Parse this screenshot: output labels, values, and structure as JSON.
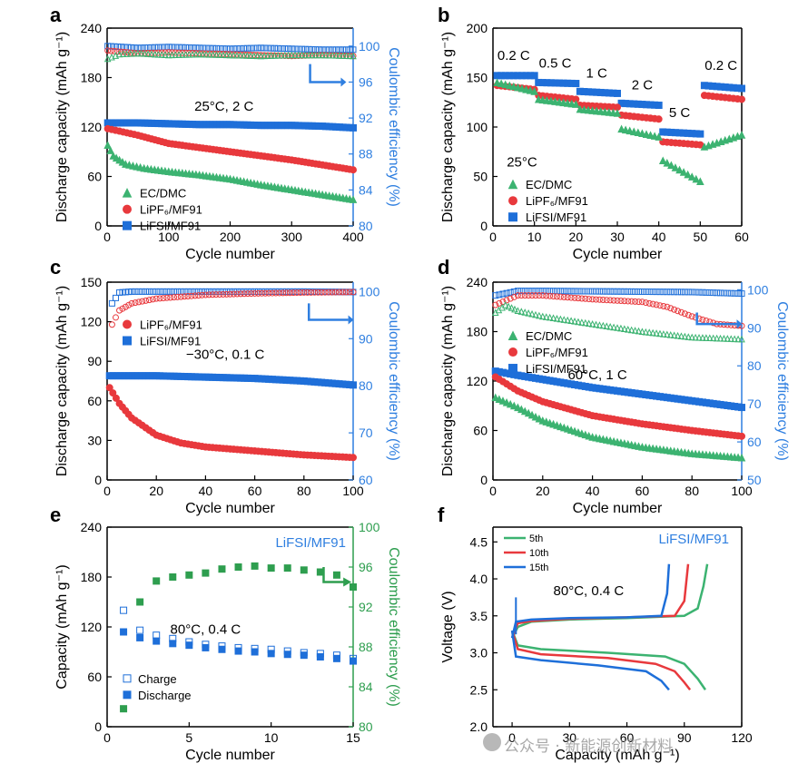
{
  "figure": {
    "watermark": "公众号 · 新能源创新材料",
    "colors": {
      "green": "#3cb371",
      "red": "#e8393d",
      "blue": "#1e6fd9",
      "ce_blue": "#2f7fe0",
      "ce_green": "#2e9e4f",
      "axis": "#000000"
    }
  },
  "chart_data": [
    {
      "panel": "a",
      "type": "scatter",
      "title": "25°C, 2 C",
      "xlabel": "Cycle number",
      "ylabel": "Discharge capacity (mAh g⁻¹)",
      "ylabel_right": "Coulombic efficiency (%)",
      "xlim": [
        0,
        400
      ],
      "ylim": [
        0,
        240
      ],
      "ylim_right": [
        80,
        102
      ],
      "xticks": [
        0,
        100,
        200,
        300,
        400
      ],
      "yticks": [
        0,
        60,
        120,
        180,
        240
      ],
      "yticks_right": [
        80,
        84,
        88,
        92,
        96,
        100
      ],
      "legend": [
        "EC/DMC",
        "LiPF6/MF91",
        "LiFSI/MF91"
      ],
      "series": [
        {
          "name": "LiFSI/MF91",
          "axis": "left",
          "x": [
            1,
            20,
            50,
            100,
            150,
            200,
            250,
            300,
            350,
            400
          ],
          "y": [
            125,
            125,
            125,
            124,
            123,
            123,
            122,
            122,
            121,
            119
          ]
        },
        {
          "name": "LiPF6/MF91",
          "axis": "left",
          "x": [
            1,
            20,
            50,
            100,
            150,
            200,
            250,
            300,
            350,
            400
          ],
          "y": [
            118,
            115,
            110,
            100,
            95,
            90,
            85,
            80,
            74,
            68
          ]
        },
        {
          "name": "EC/DMC",
          "axis": "left",
          "x": [
            1,
            10,
            30,
            60,
            100,
            150,
            200,
            250,
            300,
            350,
            400
          ],
          "y": [
            98,
            85,
            75,
            70,
            66,
            62,
            57,
            50,
            44,
            38,
            32
          ]
        },
        {
          "name": "LiFSI/MF91 CE",
          "axis": "right",
          "x": [
            1,
            50,
            100,
            150,
            200,
            250,
            300,
            350,
            400
          ],
          "y": [
            100,
            99.8,
            99.9,
            99.8,
            99.7,
            99.8,
            99.7,
            99.6,
            99.6
          ]
        },
        {
          "name": "LiPF6/MF91 CE",
          "axis": "right",
          "x": [
            1,
            50,
            100,
            150,
            200,
            250,
            300,
            350,
            400
          ],
          "y": [
            99.5,
            99.2,
            99.3,
            99.2,
            99.1,
            99,
            98.9,
            99,
            98.9
          ]
        },
        {
          "name": "EC/DMC CE",
          "axis": "right",
          "x": [
            1,
            20,
            50,
            100,
            150,
            200,
            250,
            300,
            350,
            400
          ],
          "y": [
            98.6,
            99.1,
            99.2,
            99,
            99.1,
            99,
            98.9,
            99,
            99,
            98.9
          ]
        }
      ]
    },
    {
      "panel": "b",
      "type": "scatter",
      "title": "25°C",
      "xlabel": "Cycle number",
      "ylabel": "Discharge capacity (mAh g⁻¹)",
      "xlim": [
        0,
        60
      ],
      "ylim": [
        0,
        200
      ],
      "xticks": [
        0,
        10,
        20,
        30,
        40,
        50,
        60
      ],
      "yticks": [
        0,
        50,
        100,
        150,
        200
      ],
      "rate_labels": [
        "0.2 C",
        "0.5 C",
        "1 C",
        "2 C",
        "5 C",
        "0.2 C"
      ],
      "legend": [
        "EC/DMC",
        "LiPF6/MF91",
        "LiFSI/MF91"
      ],
      "series": [
        {
          "name": "LiFSI/MF91",
          "x": [
            1,
            10,
            11,
            20,
            21,
            30,
            31,
            40,
            41,
            50,
            51,
            60
          ],
          "y": [
            152,
            152,
            145,
            144,
            136,
            134,
            124,
            122,
            95,
            93,
            142,
            139
          ]
        },
        {
          "name": "LiPF6/MF91",
          "x": [
            1,
            10,
            11,
            20,
            21,
            30,
            31,
            40,
            41,
            50,
            51,
            60
          ],
          "y": [
            142,
            138,
            132,
            128,
            122,
            120,
            112,
            108,
            85,
            82,
            132,
            128
          ]
        },
        {
          "name": "EC/DMC",
          "x": [
            1,
            10,
            11,
            20,
            21,
            30,
            31,
            40,
            41,
            50,
            51,
            60
          ],
          "y": [
            145,
            136,
            128,
            123,
            118,
            114,
            98,
            90,
            66,
            45,
            80,
            92
          ]
        }
      ]
    },
    {
      "panel": "c",
      "type": "scatter",
      "title": "−30°C, 0.1 C",
      "xlabel": "Cycle number",
      "ylabel": "Discharge capacity (mAh g⁻¹)",
      "ylabel_right": "Coulombic efficiency (%)",
      "xlim": [
        0,
        100
      ],
      "ylim": [
        0,
        150
      ],
      "ylim_right": [
        60,
        102
      ],
      "xticks": [
        0,
        20,
        40,
        60,
        80,
        100
      ],
      "yticks": [
        0,
        30,
        60,
        90,
        120,
        150
      ],
      "yticks_right": [
        60,
        70,
        80,
        90,
        100
      ],
      "legend": [
        "LiPF6/MF91",
        "LiFSI/MF91"
      ],
      "series": [
        {
          "name": "LiFSI/MF91",
          "axis": "left",
          "x": [
            1,
            10,
            20,
            40,
            60,
            80,
            100
          ],
          "y": [
            79,
            79,
            79,
            78,
            77,
            75,
            72
          ]
        },
        {
          "name": "LiPF6/MF91",
          "axis": "left",
          "x": [
            1,
            5,
            10,
            20,
            30,
            40,
            60,
            80,
            100
          ],
          "y": [
            70,
            58,
            47,
            34,
            28,
            25,
            22,
            19,
            17
          ]
        },
        {
          "name": "LiFSI/MF91 CE",
          "axis": "right",
          "x": [
            2,
            5,
            10,
            20,
            40,
            60,
            80,
            100
          ],
          "y": [
            97.5,
            99.8,
            100,
            100,
            100,
            100,
            100,
            99.9
          ]
        },
        {
          "name": "LiPF6/MF91 CE",
          "axis": "right",
          "x": [
            2,
            5,
            10,
            20,
            40,
            60,
            80,
            100
          ],
          "y": [
            93,
            96,
            97.5,
            98.5,
            99.3,
            99.6,
            99.8,
            99.9
          ]
        }
      ]
    },
    {
      "panel": "d",
      "type": "scatter",
      "title": "60°C, 1 C",
      "xlabel": "Cycle number",
      "ylabel": "Discharge capacity (mAh g⁻¹)",
      "ylabel_right": "Coulombic efficiency (%)",
      "xlim": [
        0,
        100
      ],
      "ylim": [
        0,
        240
      ],
      "ylim_right": [
        50,
        102
      ],
      "xticks": [
        0,
        20,
        40,
        60,
        80,
        100
      ],
      "yticks": [
        0,
        60,
        120,
        180,
        240
      ],
      "yticks_right": [
        50,
        60,
        70,
        80,
        90,
        100
      ],
      "legend": [
        "EC/DMC",
        "LiPF6/MF91",
        "LiFSI/MF91"
      ],
      "series": [
        {
          "name": "LiFSI/MF91",
          "axis": "left",
          "x": [
            1,
            10,
            20,
            40,
            60,
            80,
            100
          ],
          "y": [
            132,
            127,
            122,
            112,
            104,
            96,
            88
          ]
        },
        {
          "name": "LiPF6/MF91",
          "axis": "left",
          "x": [
            1,
            10,
            20,
            40,
            60,
            80,
            100
          ],
          "y": [
            125,
            108,
            95,
            78,
            68,
            60,
            53
          ]
        },
        {
          "name": "EC/DMC",
          "axis": "left",
          "x": [
            1,
            10,
            20,
            40,
            60,
            80,
            100
          ],
          "y": [
            100,
            88,
            72,
            52,
            40,
            32,
            27
          ]
        },
        {
          "name": "LiFSI/MF91 CE",
          "axis": "right",
          "x": [
            1,
            10,
            20,
            40,
            60,
            80,
            100
          ],
          "y": [
            98.5,
            99.7,
            99.7,
            99.6,
            99.5,
            99.4,
            99
          ]
        },
        {
          "name": "LiPF6/MF91 CE",
          "axis": "right",
          "x": [
            1,
            10,
            20,
            40,
            60,
            70,
            80,
            90,
            100
          ],
          "y": [
            96,
            98.5,
            98.5,
            97.5,
            96.8,
            95.5,
            93,
            91,
            90.5
          ]
        },
        {
          "name": "EC/DMC CE",
          "axis": "right",
          "x": [
            1,
            5,
            10,
            20,
            40,
            60,
            80,
            100
          ],
          "y": [
            94,
            96,
            94.5,
            93,
            91,
            89,
            87.5,
            87
          ]
        }
      ]
    },
    {
      "panel": "e",
      "type": "scatter",
      "title": "80°C, 0.4 C",
      "series_label": "LiFSI/MF91",
      "xlabel": "Cycle number",
      "ylabel": "Capacity (mAh g⁻¹)",
      "ylabel_right": "Coulombic efficiency (%)",
      "xlim": [
        0,
        15
      ],
      "ylim": [
        0,
        240
      ],
      "ylim_right": [
        80,
        100
      ],
      "xticks": [
        0,
        5,
        10,
        15
      ],
      "yticks": [
        0,
        60,
        120,
        180,
        240
      ],
      "yticks_right": [
        80,
        84,
        88,
        92,
        96,
        100
      ],
      "legend": [
        "Charge",
        "Discharge"
      ],
      "series": [
        {
          "name": "Charge",
          "axis": "left",
          "x": [
            1,
            2,
            3,
            4,
            5,
            6,
            7,
            8,
            9,
            10,
            11,
            12,
            13,
            14,
            15
          ],
          "y": [
            140,
            116,
            110,
            106,
            102,
            99,
            97,
            95,
            94,
            93,
            91,
            89,
            88,
            86,
            82
          ]
        },
        {
          "name": "Discharge",
          "axis": "left",
          "x": [
            1,
            2,
            3,
            4,
            5,
            6,
            7,
            8,
            9,
            10,
            11,
            12,
            13,
            14,
            15
          ],
          "y": [
            114,
            107,
            103,
            100,
            98,
            95,
            93,
            91,
            90,
            88,
            87,
            86,
            84,
            82,
            79
          ]
        },
        {
          "name": "Coulombic efficiency",
          "axis": "right",
          "x": [
            1,
            2,
            3,
            4,
            5,
            6,
            7,
            8,
            9,
            10,
            11,
            12,
            13,
            14,
            15
          ],
          "y": [
            81.8,
            92.5,
            94.6,
            95,
            95.2,
            95.4,
            95.8,
            96,
            96.1,
            95.9,
            95.9,
            95.7,
            95.5,
            95.2,
            94
          ]
        }
      ]
    },
    {
      "panel": "f",
      "type": "line",
      "title": "80°C, 0.4 C",
      "series_label": "LiFSI/MF91",
      "xlabel": "Capacity (mAh g⁻¹)",
      "ylabel": "Voltage (V)",
      "xlim": [
        -10,
        120
      ],
      "ylim": [
        2.0,
        4.7
      ],
      "xticks": [
        0,
        30,
        60,
        90,
        120
      ],
      "yticks": [
        2.0,
        2.5,
        3.0,
        3.5,
        4.0,
        4.5
      ],
      "legend": [
        "5th",
        "10th",
        "15th"
      ],
      "series": [
        {
          "name": "5th",
          "charge": {
            "x": [
              0,
              3,
              10,
              30,
              60,
              90,
              97,
              100,
              102
            ],
            "y": [
              3.2,
              3.35,
              3.42,
              3.45,
              3.47,
              3.5,
              3.6,
              3.9,
              4.2
            ]
          },
          "discharge": {
            "x": [
              0,
              3,
              15,
              50,
              80,
              90,
              97,
              101
            ],
            "y": [
              3.3,
              3.1,
              3.05,
              3,
              2.95,
              2.85,
              2.65,
              2.5
            ]
          }
        },
        {
          "name": "10th",
          "charge": {
            "x": [
              0,
              3,
              10,
              30,
              60,
              85,
              90,
              92
            ],
            "y": [
              3.2,
              3.4,
              3.43,
              3.46,
              3.48,
              3.5,
              3.7,
              4.2
            ]
          },
          "discharge": {
            "x": [
              0,
              3,
              15,
              50,
              75,
              85,
              90,
              93
            ],
            "y": [
              3.3,
              3.05,
              2.98,
              2.93,
              2.85,
              2.75,
              2.6,
              2.5
            ]
          }
        },
        {
          "name": "15th",
          "charge": {
            "x": [
              0,
              2,
              10,
              30,
              60,
              78,
              81,
              82
            ],
            "y": [
              3.2,
              3.42,
              3.45,
              3.47,
              3.48,
              3.5,
              3.8,
              4.2
            ]
          },
          "discharge": {
            "x": [
              0,
              2,
              15,
              45,
              70,
              78,
              82
            ],
            "y": [
              3.3,
              2.95,
              2.9,
              2.83,
              2.75,
              2.62,
              2.5
            ]
          }
        }
      ]
    }
  ]
}
